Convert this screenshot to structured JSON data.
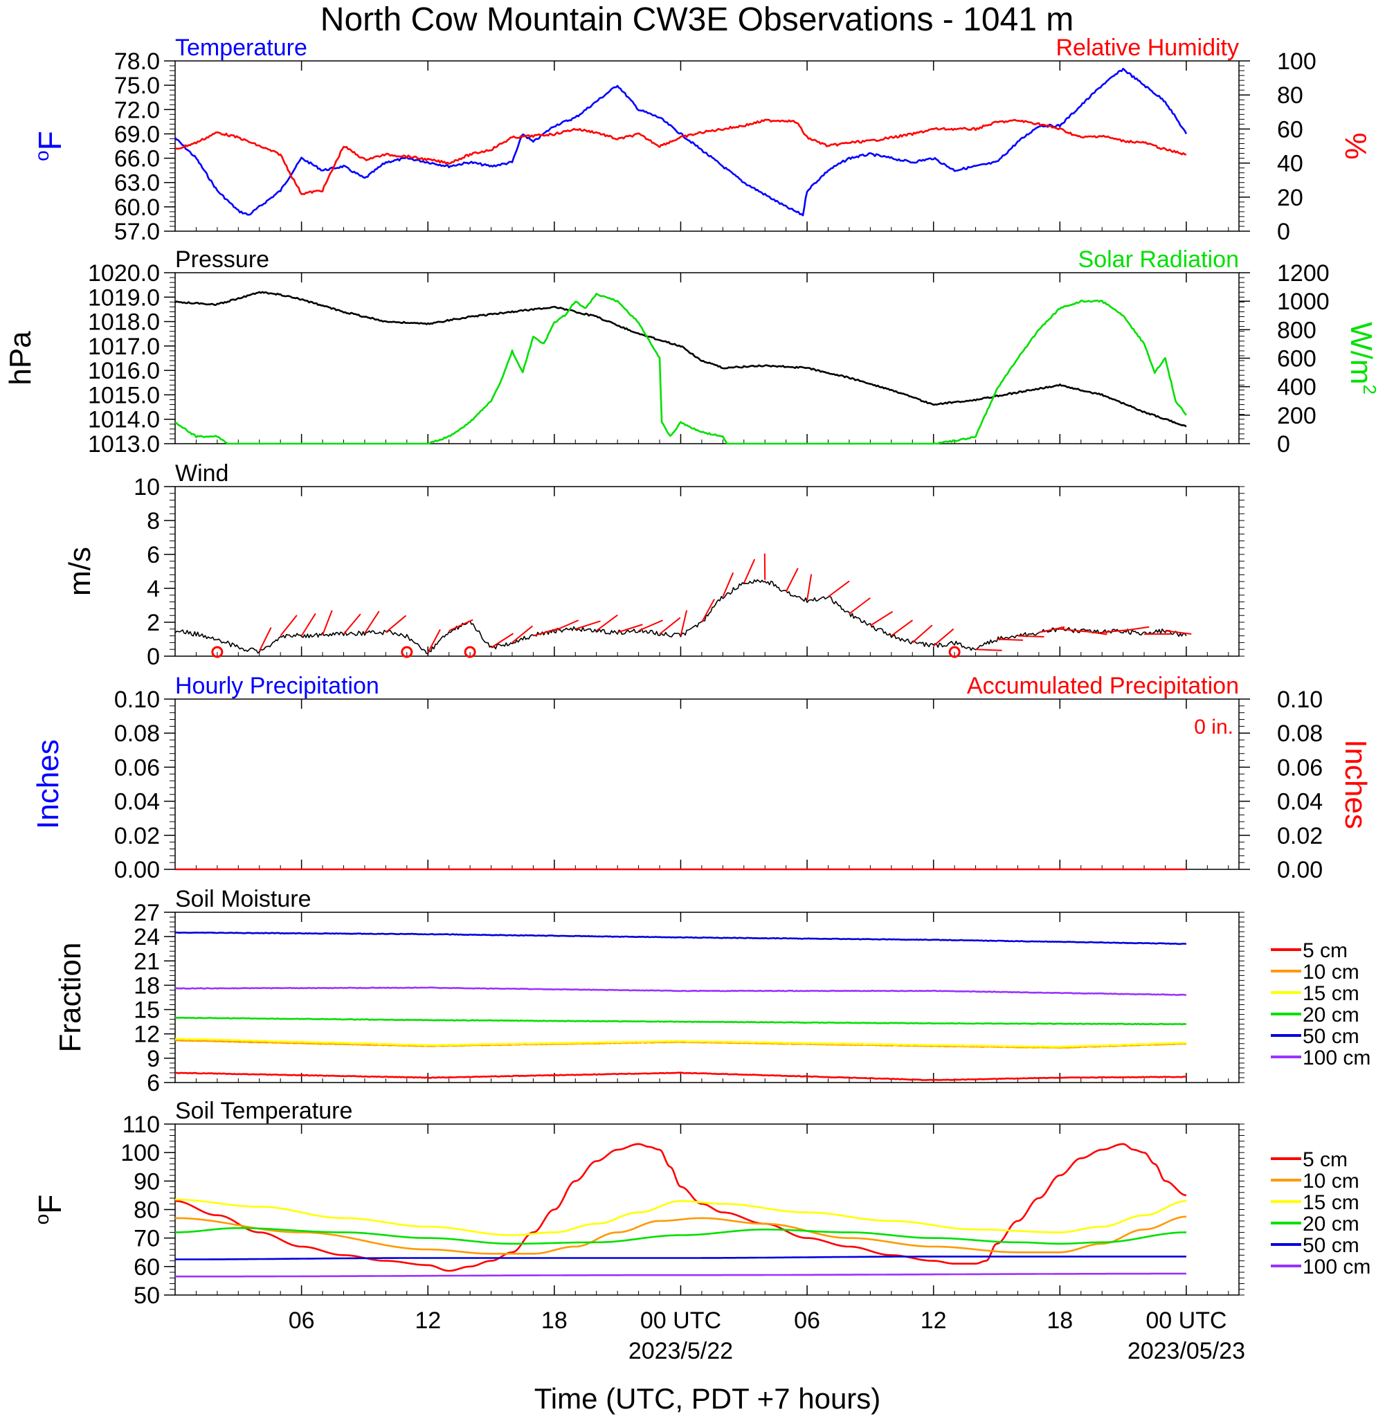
{
  "title": "North Cow Mountain CW3E Observations - 1041 m",
  "xlabel": "Time (UTC, PDT +7 hours)",
  "x_ticks": [
    {
      "label": "06",
      "hour": 6
    },
    {
      "label": "12",
      "hour": 12
    },
    {
      "label": "18",
      "hour": 18
    },
    {
      "label": "00 UTC",
      "hour": 24,
      "date": "2023/5/22"
    },
    {
      "label": "06",
      "hour": 30
    },
    {
      "label": "12",
      "hour": 36
    },
    {
      "label": "18",
      "hour": 42
    },
    {
      "label": "00 UTC",
      "hour": 48,
      "date": "2023/05/23"
    }
  ],
  "colors": {
    "red": "#ff0000",
    "blue": "#0000ff",
    "green": "#00e000",
    "black": "#000000",
    "orange": "#ff9900",
    "yellow": "#ffff00",
    "purple": "#9933ff",
    "soilblue": "#0000dd"
  },
  "chart_data": [
    {
      "type": "line",
      "panel": "temperature_humidity",
      "left_title": "Temperature",
      "right_title": "Relative Humidity",
      "ylabel_left": "°F",
      "ylabel_right": "%",
      "ylim_left": [
        57,
        78
      ],
      "yticks_left": [
        "57.0",
        "60.0",
        "63.0",
        "66.0",
        "69.0",
        "72.0",
        "75.0",
        "78.0"
      ],
      "ylim_right": [
        0,
        100
      ],
      "yticks_right": [
        "0",
        "20",
        "40",
        "60",
        "80",
        "100"
      ],
      "series": [
        {
          "name": "Temperature",
          "axis": "left",
          "color": "blue",
          "hours": [
            0,
            1,
            2,
            3,
            3.5,
            4,
            5,
            5.5,
            6,
            7,
            8,
            9,
            10,
            11,
            12,
            13,
            14,
            15,
            16,
            16.5,
            17,
            18,
            19,
            20,
            21,
            22,
            23,
            24,
            25,
            26,
            27,
            28,
            29,
            29.8,
            30,
            31,
            32,
            33,
            34,
            35,
            36,
            37,
            38,
            39,
            40,
            41,
            42,
            43,
            44,
            45,
            46,
            47,
            48
          ],
          "values": [
            68.5,
            66,
            62,
            59.5,
            59,
            60,
            62,
            64,
            66,
            64.5,
            65,
            63.5,
            65.5,
            66,
            65.5,
            65,
            65.5,
            65,
            65.5,
            69,
            68,
            70,
            71,
            73,
            75,
            72,
            71,
            69,
            67,
            65,
            63,
            61.5,
            60,
            59,
            62,
            64.5,
            66,
            66.5,
            66,
            65.5,
            66,
            64.5,
            65,
            65.5,
            68,
            70,
            70,
            72.5,
            75,
            77,
            75,
            73,
            69
          ]
        },
        {
          "name": "Relative Humidity",
          "axis": "right",
          "color": "red",
          "hours": [
            0,
            1,
            2,
            3,
            4,
            5,
            5.5,
            6,
            7,
            8,
            9,
            10,
            11,
            12,
            13,
            14,
            15,
            16,
            17,
            18,
            19,
            20,
            21,
            22,
            23,
            24,
            25,
            26,
            27,
            28,
            29,
            29.5,
            30,
            31,
            32,
            33,
            34,
            35,
            36,
            37,
            38,
            39,
            40,
            41,
            42,
            43,
            44,
            45,
            46,
            47,
            48
          ],
          "values": [
            48,
            52,
            58,
            55,
            50,
            45,
            33,
            22,
            24,
            50,
            42,
            45,
            44,
            42,
            40,
            45,
            48,
            55,
            56,
            57,
            60,
            58,
            54,
            57,
            50,
            55,
            58,
            60,
            62,
            65,
            65,
            64,
            55,
            50,
            52,
            53,
            55,
            57,
            60,
            60,
            60,
            64,
            65,
            63,
            60,
            55,
            56,
            53,
            52,
            48,
            45
          ]
        }
      ]
    },
    {
      "type": "line",
      "panel": "pressure_solar",
      "left_title": "Pressure",
      "right_title": "Solar Radiation",
      "ylabel_left": "hPa",
      "ylabel_right": "W/m2",
      "ylim_left": [
        1013,
        1020
      ],
      "yticks_left": [
        "1013.0",
        "1014.0",
        "1015.0",
        "1016.0",
        "1017.0",
        "1018.0",
        "1019.0",
        "1020.0"
      ],
      "ylim_right": [
        0,
        1200
      ],
      "yticks_right": [
        "0",
        "200",
        "400",
        "600",
        "800",
        "1000",
        "1200"
      ],
      "series": [
        {
          "name": "Pressure",
          "axis": "left",
          "color": "black",
          "hours": [
            0,
            2,
            4,
            5,
            6,
            8,
            10,
            12,
            14,
            16,
            18,
            20,
            22,
            24,
            25,
            26,
            28,
            30,
            32,
            34,
            36,
            38,
            40,
            42,
            44,
            46,
            48
          ],
          "values": [
            1018.8,
            1018.7,
            1019.2,
            1019.1,
            1018.9,
            1018.4,
            1018.0,
            1017.9,
            1018.2,
            1018.4,
            1018.6,
            1018.2,
            1017.5,
            1017.0,
            1016.4,
            1016.1,
            1016.2,
            1016.1,
            1015.7,
            1015.2,
            1014.6,
            1014.8,
            1015.1,
            1015.4,
            1015.0,
            1014.3,
            1013.7
          ]
        },
        {
          "name": "Solar Radiation",
          "axis": "right",
          "color": "green",
          "hours": [
            0,
            1,
            2,
            2.5,
            12,
            13,
            14,
            15,
            15.5,
            16,
            16.5,
            17,
            17.5,
            18,
            18.5,
            19,
            19.5,
            20,
            21,
            22,
            23,
            23.1,
            23.5,
            24,
            25,
            26,
            26.2,
            36,
            37,
            38,
            39,
            40,
            41,
            42,
            43,
            44,
            45,
            46,
            46.5,
            47,
            47.5,
            48
          ],
          "values": [
            150,
            50,
            50,
            0,
            0,
            50,
            150,
            300,
            450,
            650,
            500,
            750,
            700,
            850,
            900,
            1000,
            950,
            1050,
            1000,
            850,
            600,
            150,
            50,
            150,
            80,
            50,
            0,
            0,
            20,
            50,
            380,
            600,
            800,
            950,
            1000,
            1000,
            900,
            700,
            500,
            600,
            300,
            200
          ]
        }
      ]
    },
    {
      "type": "line",
      "panel": "wind",
      "left_title": "Wind",
      "ylabel_left": "m/s",
      "ylim_left": [
        0,
        10
      ],
      "yticks_left": [
        "0",
        "2",
        "4",
        "6",
        "8",
        "10"
      ],
      "series": [
        {
          "name": "Wind",
          "axis": "left",
          "color": "black",
          "hours": [
            0,
            1,
            2,
            3,
            4,
            4.5,
            5,
            6,
            8,
            10,
            10.5,
            11,
            11.5,
            12,
            13,
            14,
            15,
            16,
            17,
            18,
            19,
            20,
            21,
            22,
            23,
            24,
            25,
            26,
            27,
            28,
            29,
            30,
            31,
            32,
            33,
            34,
            35,
            36,
            37,
            38,
            39,
            40,
            41,
            42,
            43,
            44,
            45,
            46,
            47,
            48
          ],
          "values": [
            1.5,
            1.3,
            1.0,
            0.5,
            0.3,
            0.5,
            1.2,
            1.2,
            1.3,
            1.4,
            1.4,
            1.2,
            0.6,
            0.2,
            1.5,
            2.0,
            0.5,
            0.8,
            1.2,
            1.5,
            1.6,
            1.5,
            1.4,
            1.5,
            1.3,
            1.2,
            2.0,
            3.5,
            4.3,
            4.5,
            3.8,
            3.3,
            3.5,
            2.5,
            1.8,
            1.2,
            0.8,
            0.6,
            0.8,
            0.4,
            1.0,
            1.2,
            1.4,
            1.6,
            1.5,
            1.4,
            1.5,
            1.3,
            1.5,
            1.2
          ]
        }
      ],
      "calm_circles_hours": [
        2,
        11,
        14,
        37
      ]
    },
    {
      "type": "line",
      "panel": "precipitation",
      "left_title": "Hourly Precipitation",
      "right_title": "Accumulated Precipitation",
      "accum_label": "0 in.",
      "ylabel_left": "Inches",
      "ylabel_right": "Inches",
      "ylim_left": [
        0,
        0.1
      ],
      "yticks_left": [
        "0.00",
        "0.02",
        "0.04",
        "0.06",
        "0.08",
        "0.10"
      ],
      "yticks_right": [
        "0.00",
        "0.02",
        "0.04",
        "0.06",
        "0.08",
        "0.10"
      ],
      "series": [
        {
          "name": "Accumulated Precipitation",
          "axis": "left",
          "color": "red",
          "hours": [
            0,
            48
          ],
          "values": [
            0,
            0
          ]
        }
      ]
    },
    {
      "type": "line",
      "panel": "soil_moisture",
      "left_title": "Soil Moisture",
      "ylabel_left": "Fraction",
      "ylim_left": [
        6,
        27
      ],
      "yticks_left": [
        "6",
        "9",
        "12",
        "15",
        "18",
        "21",
        "24",
        "27"
      ],
      "legend": "right",
      "series": [
        {
          "name": "5 cm",
          "color": "red",
          "hours": [
            0,
            12,
            24,
            36,
            42,
            48
          ],
          "values": [
            7.2,
            6.6,
            7.2,
            6.3,
            6.6,
            6.7
          ]
        },
        {
          "name": "10 cm",
          "color": "orange",
          "hours": [
            0,
            12,
            24,
            36,
            42,
            48
          ],
          "values": [
            11.2,
            10.5,
            11.0,
            10.5,
            10.3,
            10.8
          ]
        },
        {
          "name": "15 cm",
          "color": "yellow",
          "hours": [
            0,
            12,
            24,
            36,
            42,
            48
          ],
          "values": [
            11.4,
            10.6,
            11.1,
            10.6,
            10.4,
            10.9
          ]
        },
        {
          "name": "20 cm",
          "color": "green",
          "hours": [
            0,
            12,
            24,
            36,
            48
          ],
          "values": [
            14.0,
            13.7,
            13.5,
            13.3,
            13.2
          ]
        },
        {
          "name": "50 cm",
          "color": "soilblue",
          "hours": [
            0,
            12,
            24,
            36,
            48
          ],
          "values": [
            24.5,
            24.3,
            23.9,
            23.6,
            23.1
          ]
        },
        {
          "name": "100 cm",
          "color": "purple",
          "hours": [
            0,
            12,
            24,
            36,
            48
          ],
          "values": [
            17.6,
            17.7,
            17.3,
            17.3,
            16.8
          ]
        }
      ]
    },
    {
      "type": "line",
      "panel": "soil_temperature",
      "left_title": "Soil Temperature",
      "ylabel_left": "°F",
      "ylim_left": [
        50,
        110
      ],
      "yticks_left": [
        "50",
        "60",
        "70",
        "80",
        "90",
        "100",
        "110"
      ],
      "legend": "right",
      "series": [
        {
          "name": "5 cm",
          "color": "red",
          "hours": [
            0,
            2,
            4,
            6,
            8,
            10,
            12,
            13,
            14,
            15,
            16,
            17,
            18,
            19,
            20,
            21,
            22,
            22.5,
            23,
            23.5,
            24,
            25,
            26,
            28,
            30,
            32,
            34,
            36,
            37,
            38,
            38.5,
            39,
            40,
            41,
            42,
            43,
            44,
            45,
            45.5,
            46,
            46.5,
            47,
            48
          ],
          "values": [
            83,
            78,
            72,
            67,
            64,
            62,
            60.5,
            58.5,
            60,
            62,
            65,
            72,
            80,
            90,
            97,
            101,
            103,
            102,
            101,
            95,
            88,
            82,
            79,
            75,
            70,
            67,
            64,
            62,
            61,
            61,
            62,
            68,
            76,
            84,
            92,
            98,
            101,
            103,
            101,
            100,
            96,
            90,
            85
          ]
        },
        {
          "name": "10 cm",
          "color": "orange",
          "hours": [
            0,
            6,
            12,
            15,
            17,
            19,
            21,
            23,
            25,
            28,
            32,
            36,
            40,
            42,
            44,
            46,
            48
          ],
          "values": [
            77,
            72,
            66,
            64.5,
            64.5,
            67,
            72,
            76,
            77,
            75,
            70,
            67,
            65,
            65,
            68,
            73,
            77.5
          ]
        },
        {
          "name": "15 cm",
          "color": "yellow",
          "hours": [
            0,
            4,
            8,
            12,
            16,
            18,
            20,
            22,
            24,
            26,
            30,
            34,
            38,
            42,
            44,
            46,
            48
          ],
          "values": [
            83.5,
            81,
            77,
            74,
            71,
            72,
            75,
            79,
            83,
            82,
            79,
            76,
            73,
            72,
            74,
            78,
            83
          ]
        },
        {
          "name": "20 cm",
          "color": "green",
          "hours": [
            0,
            3,
            8,
            12,
            16,
            20,
            24,
            28,
            32,
            36,
            40,
            42,
            44,
            48
          ],
          "values": [
            72,
            73.5,
            72,
            70,
            68,
            68.5,
            71,
            73,
            72,
            70,
            68.5,
            68,
            68.5,
            72
          ]
        },
        {
          "name": "50 cm",
          "color": "soilblue",
          "hours": [
            0,
            12,
            24,
            36,
            48
          ],
          "values": [
            62.5,
            63,
            63,
            63.5,
            63.5
          ]
        },
        {
          "name": "100 cm",
          "color": "purple",
          "hours": [
            0,
            24,
            48
          ],
          "values": [
            56.5,
            57,
            57.5
          ]
        }
      ]
    }
  ]
}
